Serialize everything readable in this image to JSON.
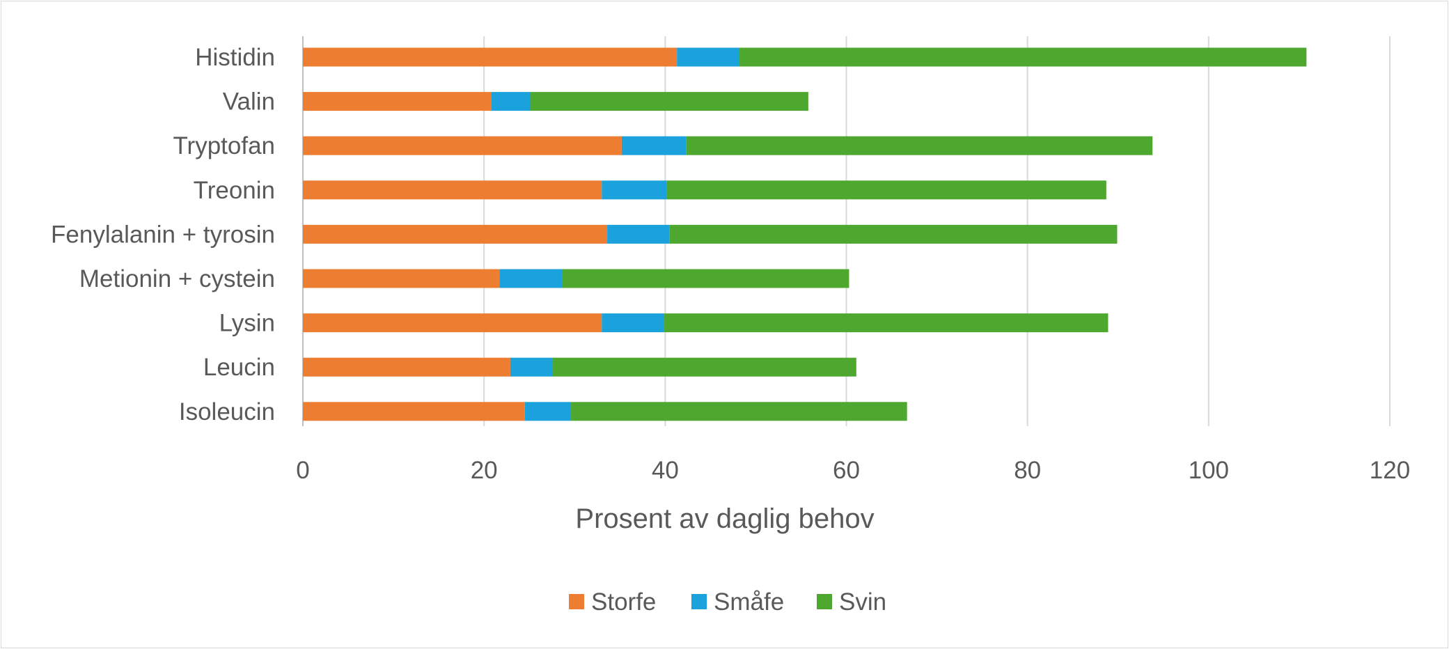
{
  "chart_data": {
    "type": "bar",
    "orientation": "horizontal",
    "stacked": true,
    "categories": [
      "Histidin",
      "Valin",
      "Tryptofan",
      "Treonin",
      "Fenylalanin + tyrosin",
      "Metionin + cystein",
      "Lysin",
      "Leucin",
      "Isoleucin"
    ],
    "series": [
      {
        "name": "Storfe",
        "color": "#ED7D31",
        "values": [
          41.3,
          20.8,
          35.2,
          33.0,
          33.6,
          21.7,
          33.0,
          22.9,
          24.5
        ]
      },
      {
        "name": "Småfe",
        "color": "#1BA1DC",
        "values": [
          6.9,
          4.3,
          7.1,
          7.2,
          6.9,
          6.9,
          6.9,
          4.7,
          5.1
        ]
      },
      {
        "name": "Svin",
        "color": "#4EA72E",
        "values": [
          62.6,
          30.7,
          51.5,
          48.5,
          49.4,
          31.7,
          49.0,
          33.5,
          37.1
        ]
      }
    ],
    "xlabel": "Prosent av daglig behov",
    "ylabel": "",
    "xlim": [
      0,
      120
    ],
    "xticks": [
      0,
      20,
      40,
      60,
      80,
      100,
      120
    ],
    "grid": true,
    "legend_position": "bottom"
  }
}
